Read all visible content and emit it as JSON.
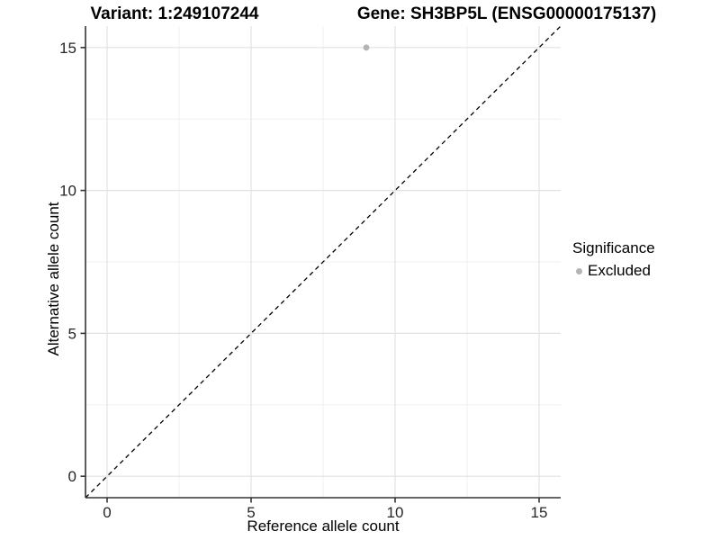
{
  "header": {
    "title_left": "Variant: 1:249107244",
    "title_right": "Gene: SH3BP5L (ENSG00000175137)"
  },
  "chart_data": {
    "type": "scatter",
    "title_left": "Variant: 1:249107244",
    "title_right": "Gene: SH3BP5L (ENSG00000175137)",
    "xlabel": "Reference allele count",
    "ylabel": "Alternative allele count",
    "xlim": [
      -0.75,
      15.75
    ],
    "ylim": [
      -0.75,
      15.75
    ],
    "x_ticks": [
      0,
      5,
      10,
      15
    ],
    "y_ticks": [
      0,
      5,
      10,
      15
    ],
    "x_minor_ticks": [
      2.5,
      7.5,
      12.5
    ],
    "y_minor_ticks": [
      2.5,
      7.5,
      12.5
    ],
    "grid": true,
    "identity_line": {
      "style": "dashed",
      "from": [
        -0.75,
        -0.75
      ],
      "to": [
        15.75,
        15.75
      ],
      "color": "#000000"
    },
    "series": [
      {
        "name": "Excluded",
        "color": "#b4b4b4",
        "points": [
          {
            "x": 9,
            "y": 15
          }
        ]
      }
    ],
    "legend": {
      "title": "Significance",
      "position": "right",
      "items": [
        {
          "label": "Excluded",
          "color": "#b4b4b4"
        }
      ]
    }
  },
  "colors": {
    "background": "#ffffff",
    "grid_major": "#e2e2e2",
    "grid_minor": "#efefef",
    "axis_line": "#333333",
    "tick_text": "#262626",
    "point": "#b4b4b4",
    "identity_line": "#000000"
  }
}
